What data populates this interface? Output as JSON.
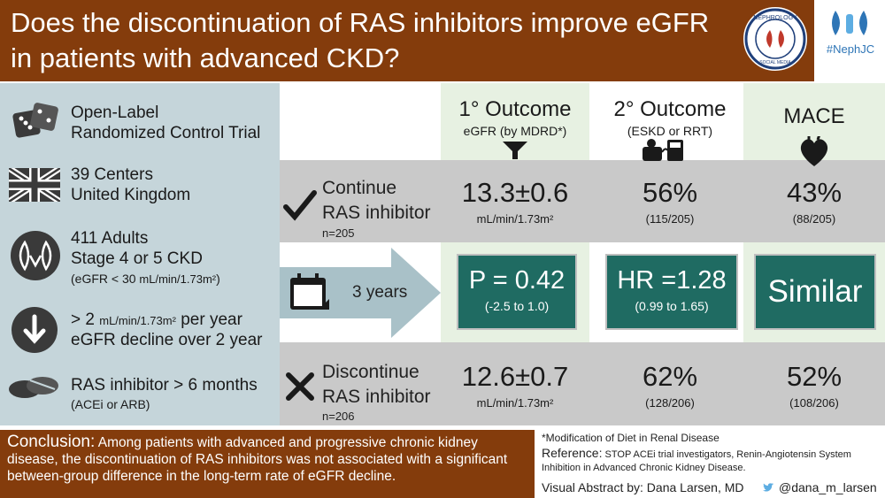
{
  "header": {
    "title": "Does the discontinuation of RAS inhibitors improve eGFR in patients with advanced CKD?",
    "hashtag": "#NephJC",
    "logo_text": "NEPHROLOGY SOCIAL MEDIA COLLECTIVE"
  },
  "study": {
    "design_line1": "Open-Label",
    "design_line2": "Randomized Control Trial",
    "centers_line1": "39 Centers",
    "centers_line2": "United Kingdom",
    "population_line1": "411 Adults",
    "population_line2": "Stage 4 or 5 CKD",
    "population_line3_a": "(eGFR < 30 ",
    "population_line3_unit": "mL/min/1.73m²",
    "population_line3_b": ")",
    "decline_line1_a": "> 2 ",
    "decline_line1_unit": "mL/min/1.73m²",
    "decline_line1_b": " per year",
    "decline_line2": "eGFR decline over 2 year",
    "ras_line1": "RAS inhibitor > 6 months",
    "ras_line2": "(ACEi or ARB)"
  },
  "columns": {
    "primary_title": "1° Outcome",
    "primary_sub": "eGFR (by MDRD*)",
    "secondary_title": "2° Outcome",
    "secondary_sub": "(ESKD or RRT)",
    "mace_title": "MACE"
  },
  "arms": {
    "continue_label_1": "Continue",
    "continue_label_2": "RAS inhibitor",
    "continue_n": "n=205",
    "continue_primary": "13.3±0.6",
    "continue_primary_unit": "mL/min/1.73m²",
    "continue_secondary": "56%",
    "continue_secondary_frac": "(115/205)",
    "continue_mace": "43%",
    "continue_mace_frac": "(88/205)",
    "discontinue_label_1": "Discontinue",
    "discontinue_label_2": "RAS inhibitor",
    "discontinue_n": "n=206",
    "discontinue_primary": "12.6±0.7",
    "discontinue_primary_unit": "mL/min/1.73m²",
    "discontinue_secondary": "62%",
    "discontinue_secondary_frac": "(128/206)",
    "discontinue_mace": "52%",
    "discontinue_mace_frac": "(108/206)"
  },
  "followup": "3 years",
  "comparison": {
    "primary_stat": "P = 0.42",
    "primary_ci": "(-2.5 to 1.0)",
    "secondary_stat": "HR =1.28",
    "secondary_ci": "(0.99 to 1.65)",
    "mace_result": "Similar"
  },
  "footer": {
    "conclusion_label": "Conclusion:",
    "conclusion_text": "Among patients with advanced and progressive chronic kidney disease, the discontinuation of RAS inhibitors was not associated with a significant between-group difference in the long-term rate of eGFR decline.",
    "footnote": "*Modification of Diet in Renal Disease",
    "reference_label": "Reference:",
    "reference_text": "STOP ACEi trial investigators, Renin-Angiotensin System Inhibition in Advanced Chronic Kidney Disease.",
    "abstract_by": "Visual Abstract by: Dana Larsen, MD",
    "twitter": "@dana_m_larsen"
  },
  "colors": {
    "header_brown": "#843c0c",
    "left_panel": "#c5d5da",
    "result_box": "#1f6b62",
    "column_tint": "#e7f1e2",
    "row_gray": "#c9c9c9",
    "arrow": "#a9c1c8"
  },
  "icons": [
    "dice-icon",
    "uk-flag-icon",
    "kidney-icon",
    "down-arrow-icon",
    "pills-icon",
    "check-icon",
    "calendar-icon",
    "x-icon",
    "funnel-icon",
    "dialysis-icon",
    "heart-icon",
    "kidney-logo-icon",
    "twitter-icon"
  ]
}
